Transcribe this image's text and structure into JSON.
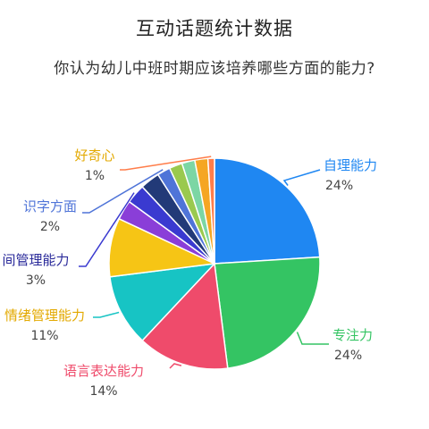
{
  "chart_data": {
    "type": "pie",
    "title": "互动话题统计数据",
    "subtitle": "你认为幼儿中班时期应该培养哪些方面的能力?",
    "slices": [
      {
        "label": "自理能力",
        "value": 24,
        "pct_label": "24%",
        "color": "#1f87f2"
      },
      {
        "label": "专注力",
        "value": 24,
        "pct_label": "24%",
        "color": "#34c463"
      },
      {
        "label": "语言表达能力",
        "value": 14,
        "pct_label": "14%",
        "color": "#ef4b6b"
      },
      {
        "label": "情绪管理能力",
        "value": 11,
        "pct_label": "11%",
        "color": "#17c4c4"
      },
      {
        "label": "",
        "value": 9,
        "pct_label": "",
        "color": "#f6c515"
      },
      {
        "label": "",
        "value": 3,
        "pct_label": "",
        "color": "#8a3ed8"
      },
      {
        "label": "间管理能力",
        "value": 3,
        "pct_label": "3%",
        "color": "#3a3ad0"
      },
      {
        "label": "",
        "value": 3,
        "pct_label": "",
        "color": "#223a78"
      },
      {
        "label": "识字方面",
        "value": 2,
        "pct_label": "2%",
        "color": "#4f74d8"
      },
      {
        "label": "",
        "value": 2,
        "pct_label": "",
        "color": "#9ac94e"
      },
      {
        "label": "",
        "value": 2,
        "pct_label": "",
        "color": "#7cd6a4"
      },
      {
        "label": "",
        "value": 2,
        "pct_label": "",
        "color": "#f5a623"
      },
      {
        "label": "好奇心",
        "value": 1,
        "pct_label": "1%",
        "color": "#ff7d4a"
      }
    ]
  }
}
